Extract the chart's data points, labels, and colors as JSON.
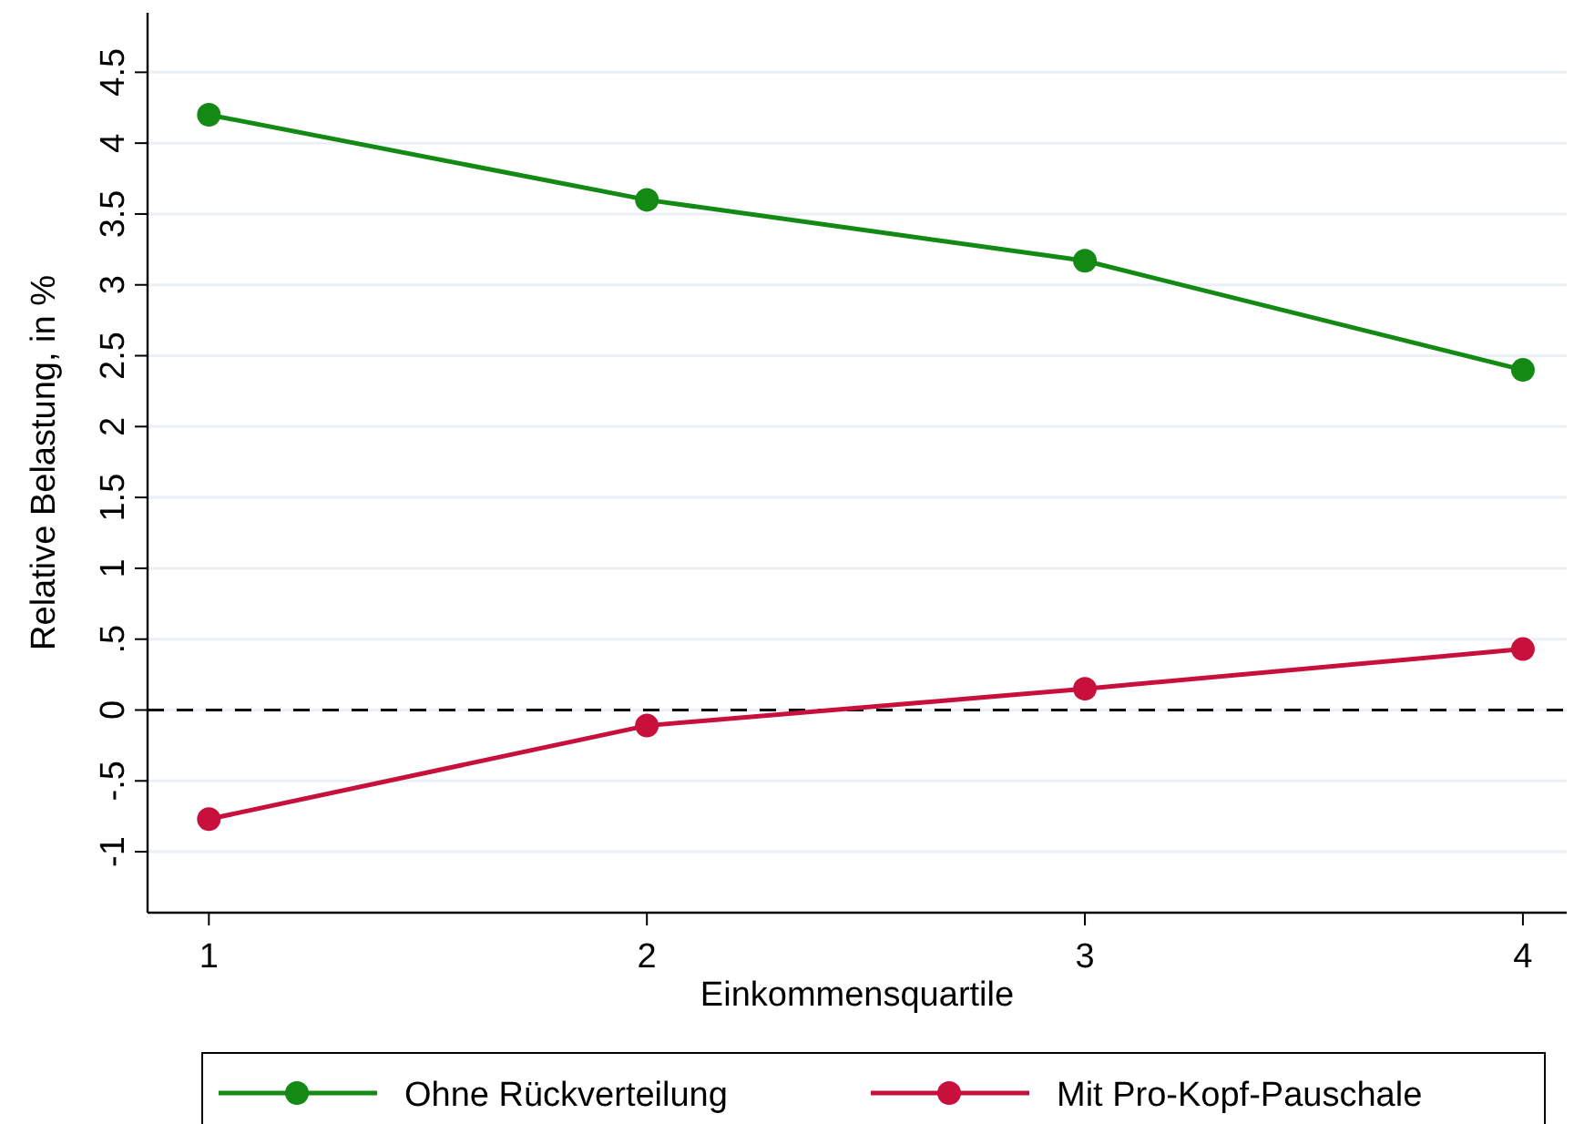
{
  "chart_data": {
    "type": "line",
    "xlabel": "Einkommensquartile",
    "ylabel": "Relative Belastung, in %",
    "x": [
      1,
      2,
      3,
      4
    ],
    "series": [
      {
        "name": "Ohne Rückverteilung",
        "color": "#138a13",
        "values": [
          4.2,
          3.6,
          3.17,
          2.4
        ]
      },
      {
        "name": "Mit Pro-Kopf-Pauschale",
        "color": "#c8103c",
        "values": [
          -0.77,
          -0.11,
          0.15,
          0.43
        ]
      }
    ],
    "xlim": [
      0.86,
      4.1
    ],
    "xticks": [
      1,
      2,
      3,
      4
    ],
    "ylim": [
      -1.43,
      4.92
    ],
    "yticks": [
      {
        "value": -1,
        "label": "-1"
      },
      {
        "value": -0.5,
        "label": "-.5"
      },
      0,
      {
        "value": 0.5,
        "label": ".5"
      },
      1,
      1.5,
      2,
      2.5,
      3,
      3.5,
      4,
      4.5
    ],
    "ref_lines": [
      {
        "axis": "y",
        "value": 0,
        "color": "#000000",
        "line_style": "dashed"
      }
    ],
    "grid": "y",
    "legend": "bottom",
    "marker": "circle",
    "line_style": "solid"
  }
}
